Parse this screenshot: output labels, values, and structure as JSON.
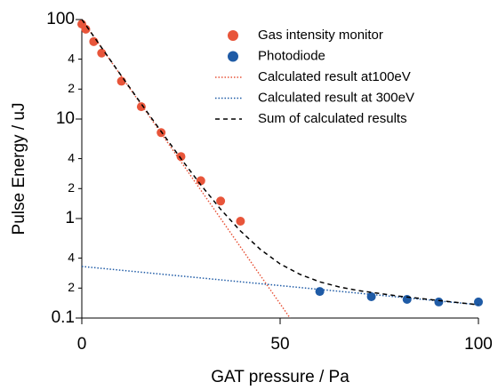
{
  "chart_data": {
    "type": "scatter",
    "xlabel": "GAT pressure / Pa",
    "ylabel": "Pulse Energy / uJ",
    "xlim": [
      0,
      100
    ],
    "ylim": [
      0.1,
      100
    ],
    "ylog": true,
    "xticks": [
      0,
      50,
      100
    ],
    "yticks": [
      0.1,
      {
        "value": 0.2,
        "label": "2"
      },
      {
        "value": 0.4,
        "label": "4"
      },
      1,
      {
        "value": 2,
        "label": "2"
      },
      {
        "value": 4,
        "label": "4"
      },
      10,
      {
        "value": 20,
        "label": "2"
      },
      {
        "value": 40,
        "label": "4"
      },
      100
    ],
    "legend": "upper right",
    "series": [
      {
        "name": "Gas intensity monitor",
        "color": "#e8553a",
        "style": "marker",
        "x": [
          0,
          1,
          3,
          5,
          10,
          15,
          20,
          25,
          30,
          35,
          40
        ],
        "values": [
          90,
          80,
          60,
          46,
          24,
          13.3,
          7.3,
          4.2,
          2.4,
          1.5,
          0.94
        ]
      },
      {
        "name": "Photodiode",
        "color": "#1f5ba6",
        "style": "marker",
        "x": [
          60,
          73,
          82,
          90,
          100
        ],
        "values": [
          0.185,
          0.164,
          0.154,
          0.145,
          0.145
        ]
      },
      {
        "name": "Calculated result at100eV",
        "color": "#e8553a",
        "style": "dotted",
        "x": [
          0,
          52.5
        ],
        "values": [
          100,
          0.1
        ]
      },
      {
        "name": "Calculated result at 300eV",
        "color": "#1f5ba6",
        "style": "dotted",
        "x": [
          0,
          100
        ],
        "values": [
          0.33,
          0.136
        ]
      },
      {
        "name": "Sum of calculated results",
        "color": "#000000",
        "style": "dashed",
        "x": [
          0,
          5,
          10,
          15,
          20,
          25,
          30,
          35,
          40,
          45,
          50,
          55,
          60,
          65,
          70,
          80,
          90,
          100
        ],
        "values": [
          100.3,
          52.1,
          27.1,
          14.2,
          7.5,
          4.0,
          2.18,
          1.24,
          0.75,
          0.49,
          0.35,
          0.275,
          0.231,
          0.205,
          0.188,
          0.166,
          0.15,
          0.136
        ]
      }
    ]
  }
}
